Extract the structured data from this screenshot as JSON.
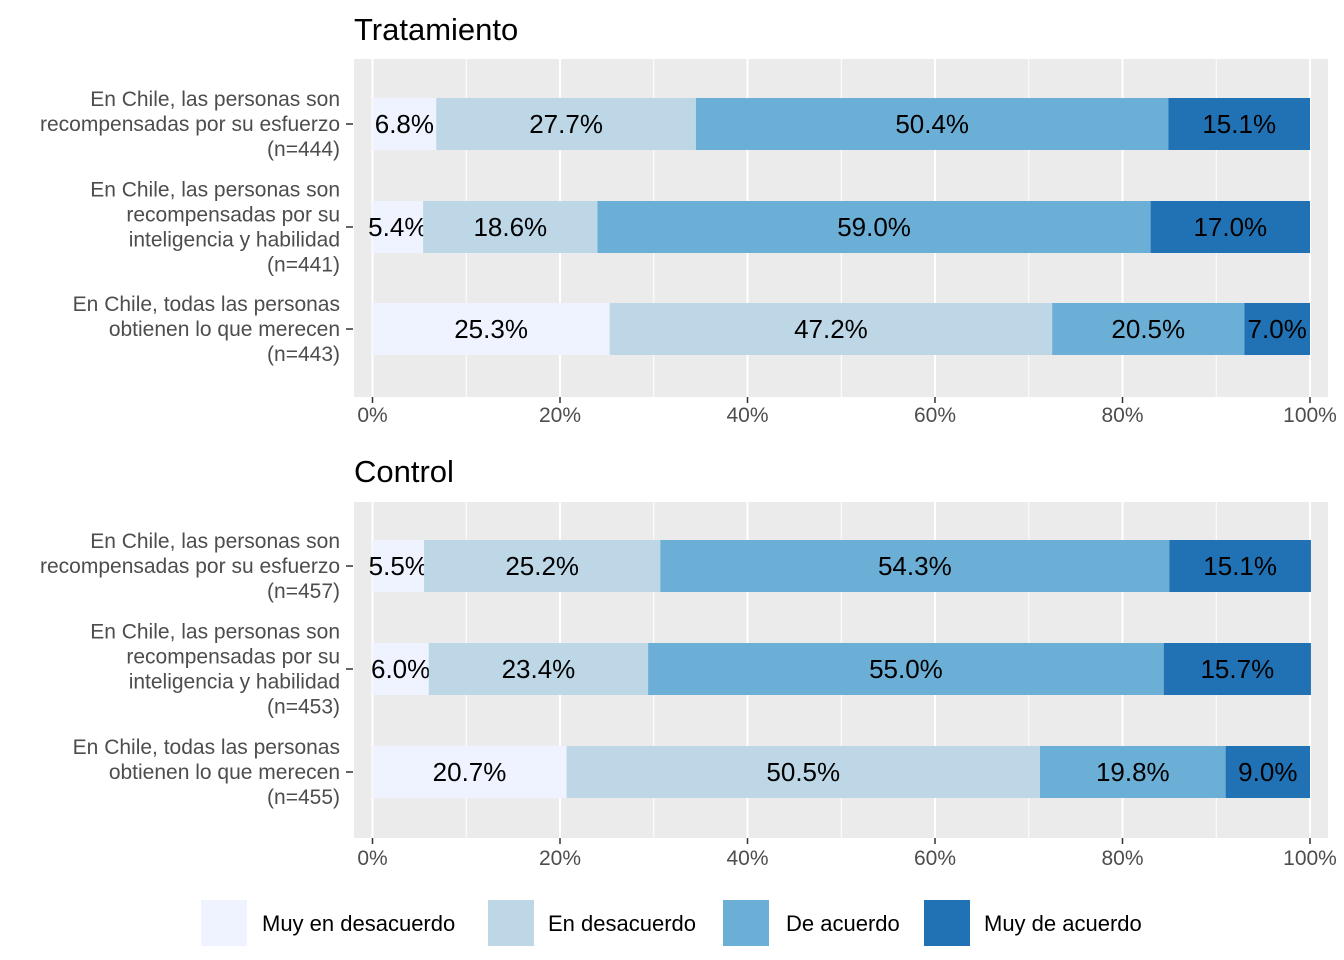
{
  "chart_data": [
    {
      "type": "bar",
      "orientation": "horizontal",
      "stacked": true,
      "title": "Tratamiento",
      "categories": [
        [
          "En Chile, las personas son",
          "recompensadas por su esfuerzo",
          "(n=444)"
        ],
        [
          "En Chile, las personas son",
          "recompensadas por su",
          "inteligencia y habilidad",
          "(n=441)"
        ],
        [
          "En Chile, todas las personas",
          "obtienen lo que merecen",
          "(n=443)"
        ]
      ],
      "series": [
        {
          "name": "Muy en desacuerdo",
          "values": [
            6.8,
            5.4,
            25.3
          ],
          "labels": [
            "6.8%",
            "5.4%",
            "25.3%"
          ]
        },
        {
          "name": "En desacuerdo",
          "values": [
            27.7,
            18.6,
            47.2
          ],
          "labels": [
            "27.7%",
            "18.6%",
            "47.2%"
          ]
        },
        {
          "name": "De acuerdo",
          "values": [
            50.4,
            59.0,
            20.5
          ],
          "labels": [
            "50.4%",
            "59.0%",
            "20.5%"
          ]
        },
        {
          "name": "Muy de acuerdo",
          "values": [
            15.1,
            17.0,
            7.0
          ],
          "labels": [
            "15.1%",
            "17.0%",
            "7.0%"
          ]
        }
      ],
      "xlim": [
        0,
        100
      ],
      "x_ticks": [
        "0%",
        "20%",
        "40%",
        "60%",
        "80%",
        "100%"
      ],
      "grid": true
    },
    {
      "type": "bar",
      "orientation": "horizontal",
      "stacked": true,
      "title": "Control",
      "categories": [
        [
          "En Chile, las personas son",
          "recompensadas por su esfuerzo",
          "(n=457)"
        ],
        [
          "En Chile, las personas son",
          "recompensadas por su",
          "inteligencia y habilidad",
          "(n=453)"
        ],
        [
          "En Chile, todas las personas",
          "obtienen lo que merecen",
          "(n=455)"
        ]
      ],
      "series": [
        {
          "name": "Muy en desacuerdo",
          "values": [
            5.5,
            6.0,
            20.7
          ],
          "labels": [
            "5.5%",
            "6.0%",
            "20.7%"
          ]
        },
        {
          "name": "En desacuerdo",
          "values": [
            25.2,
            23.4,
            50.5
          ],
          "labels": [
            "25.2%",
            "23.4%",
            "50.5%"
          ]
        },
        {
          "name": "De acuerdo",
          "values": [
            54.3,
            55.0,
            19.8
          ],
          "labels": [
            "54.3%",
            "55.0%",
            "19.8%"
          ]
        },
        {
          "name": "Muy de acuerdo",
          "values": [
            15.1,
            15.7,
            9.0
          ],
          "labels": [
            "15.1%",
            "15.7%",
            "9.0%"
          ]
        }
      ],
      "xlim": [
        0,
        100
      ],
      "x_ticks": [
        "0%",
        "20%",
        "40%",
        "60%",
        "80%",
        "100%"
      ],
      "grid": true
    }
  ],
  "legend": {
    "position": "bottom",
    "items": [
      {
        "label": "Muy en desacuerdo",
        "color": "#eff3ff"
      },
      {
        "label": "En desacuerdo",
        "color": "#bdd7e7"
      },
      {
        "label": "De acuerdo",
        "color": "#6baed6"
      },
      {
        "label": "Muy de acuerdo",
        "color": "#2171b5"
      }
    ]
  },
  "colors": {
    "panel_background": "#ebebeb",
    "grid_major": "#ffffff",
    "tick_text": "#4d4d4d",
    "series": [
      "#eff3ff",
      "#bdd7e7",
      "#6baed6",
      "#2171b5"
    ]
  }
}
